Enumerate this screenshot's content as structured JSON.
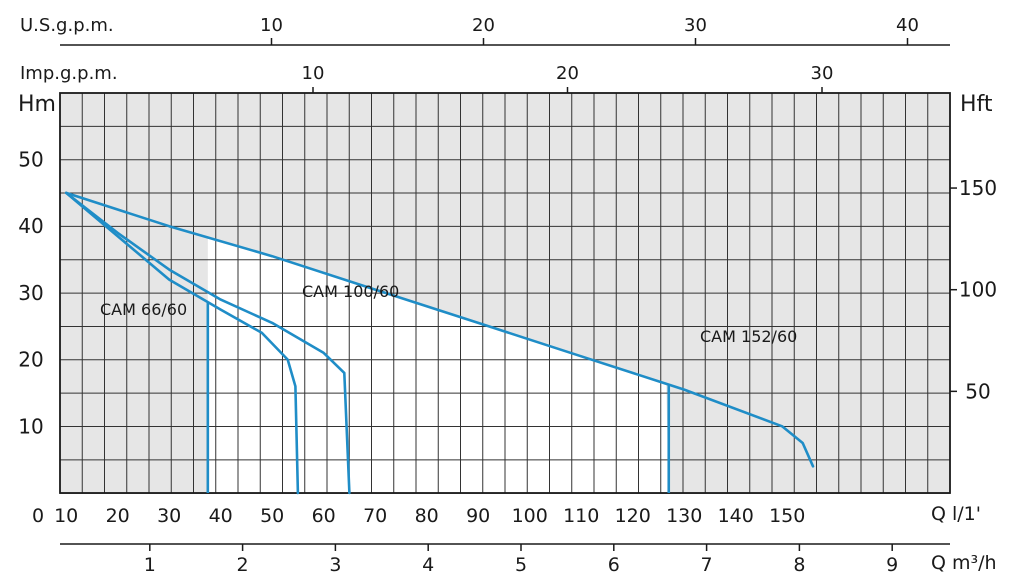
{
  "chart_data": {
    "type": "line",
    "title": "",
    "axes": {
      "usgpm": {
        "label": "U.S.g.p.m.",
        "ticks": [
          "10",
          "20",
          "30",
          "40"
        ],
        "range": [
          0,
          42
        ]
      },
      "impgpm": {
        "label": "Imp.g.p.m.",
        "ticks": [
          "10",
          "20",
          "30"
        ],
        "range": [
          0,
          35
        ]
      },
      "hm": {
        "label": "Hm",
        "ticks": [
          "10",
          "20",
          "30",
          "40",
          "50"
        ],
        "range": [
          0,
          60
        ]
      },
      "hft": {
        "label": "Hft",
        "ticks": [
          "50",
          "100",
          "150"
        ],
        "range": [
          0,
          197
        ]
      },
      "lmin": {
        "label": "Q  l/1'",
        "ticks": [
          "0",
          "10",
          "20",
          "30",
          "40",
          "50",
          "60",
          "70",
          "80",
          "90",
          "100",
          "110",
          "120",
          "130",
          "140",
          "150"
        ],
        "range": [
          0,
          160
        ]
      },
      "m3h": {
        "label": "Q  m³/h",
        "ticks": [
          "1",
          "2",
          "3",
          "4",
          "5",
          "6",
          "7",
          "8",
          "9"
        ],
        "range": [
          0,
          9.6
        ]
      }
    },
    "grid": true,
    "series": [
      {
        "name": "CAM 66/60",
        "points": [
          [
            10,
            45
          ],
          [
            20,
            38.5
          ],
          [
            30,
            32
          ],
          [
            40,
            27.5
          ],
          [
            48,
            24
          ],
          [
            53,
            20
          ],
          [
            54.5,
            16
          ],
          [
            55,
            0
          ]
        ],
        "duty_limit_lmin": 37.5
      },
      {
        "name": "CAM 100/60",
        "points": [
          [
            10,
            45
          ],
          [
            20,
            39
          ],
          [
            30,
            33.5
          ],
          [
            40,
            29
          ],
          [
            50,
            25.5
          ],
          [
            60,
            21
          ],
          [
            64,
            18
          ],
          [
            65,
            0
          ]
        ],
        "duty_limit_lmin": 67
      },
      {
        "name": "CAM 152/60",
        "points": [
          [
            10,
            45
          ],
          [
            30,
            40
          ],
          [
            50,
            35.5
          ],
          [
            70,
            30.5
          ],
          [
            90,
            25.5
          ],
          [
            110,
            20.5
          ],
          [
            130,
            15.5
          ],
          [
            149,
            10
          ],
          [
            153,
            7.5
          ],
          [
            155,
            4
          ]
        ],
        "duty_limit_lmin": 127
      }
    ],
    "colors": {
      "curve": "#1f8dc7",
      "grid": "#333333",
      "text": "#1a1a1a"
    }
  }
}
